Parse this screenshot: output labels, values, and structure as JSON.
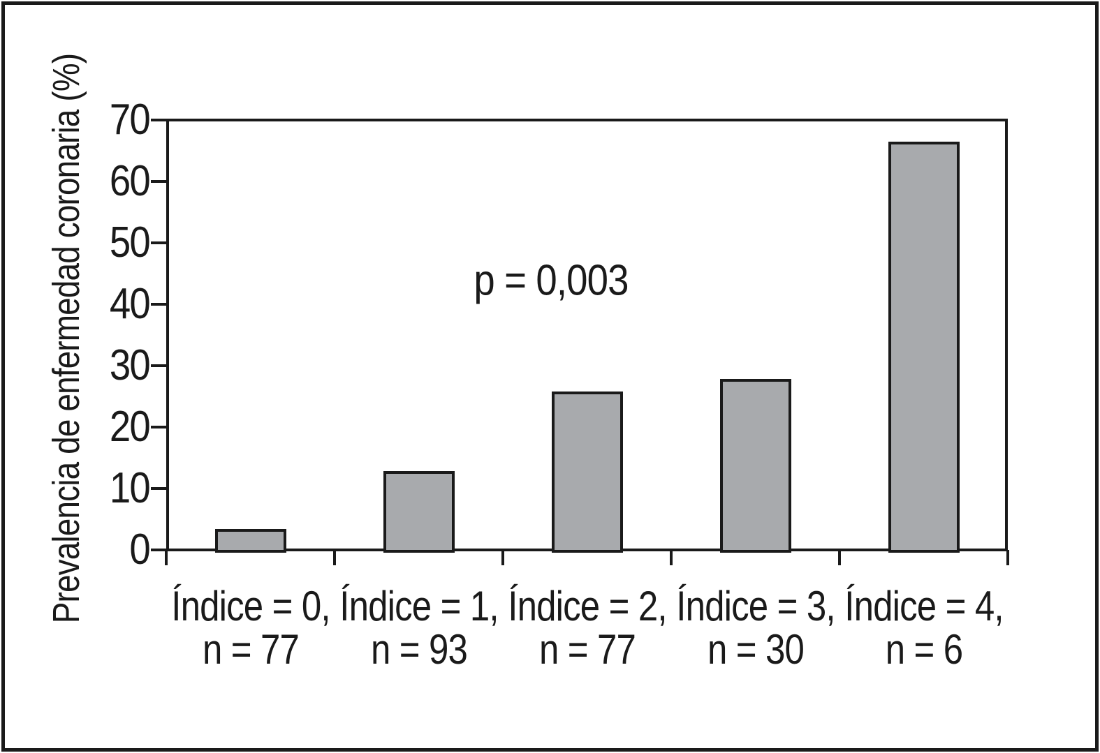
{
  "figure": {
    "background": "#ffffff",
    "frame_color": "#1a1a1a",
    "text_color": "#1a1a1a"
  },
  "y_axis": {
    "label": "Prevalencia de enfermedad coronaria (%)",
    "tick_values": [
      70,
      60,
      50,
      40,
      30,
      20,
      10,
      0
    ],
    "min": 0,
    "max": 70
  },
  "x_axis": {
    "categories": [
      {
        "line1": "Índice = 0,",
        "line2": "n = 77"
      },
      {
        "line1": "Índice = 1,",
        "line2": "n = 93"
      },
      {
        "line1": "Índice = 2,",
        "line2": "n = 77"
      },
      {
        "line1": "Índice = 3,",
        "line2": "n = 30"
      },
      {
        "line1": "Índice = 4,",
        "line2": "n = 6"
      }
    ]
  },
  "bars": {
    "fill_color": "#a8aaad",
    "stroke_color": "#1a1a1a",
    "values": [
      3.4,
      12.8,
      25.8,
      27.8,
      66.5
    ]
  },
  "annotation": {
    "p_value_text": "p = 0,003"
  },
  "chart_data": {
    "type": "bar",
    "title": "",
    "xlabel": "",
    "ylabel": "Prevalencia de enfermedad coronaria (%)",
    "categories": [
      "Índice = 0, n = 77",
      "Índice = 1, n = 93",
      "Índice = 2, n = 77",
      "Índice = 3, n = 30",
      "Índice = 4, n = 6"
    ],
    "values": [
      3.4,
      12.8,
      25.8,
      27.8,
      66.5
    ],
    "ylim": [
      0,
      70
    ],
    "yticks": [
      0,
      10,
      20,
      30,
      40,
      50,
      60,
      70
    ],
    "grid": false,
    "legend": false,
    "bar_color": "#a8aaad",
    "annotations": [
      {
        "text": "p = 0,003",
        "x_fraction": 0.46,
        "y_value": 44
      }
    ]
  }
}
